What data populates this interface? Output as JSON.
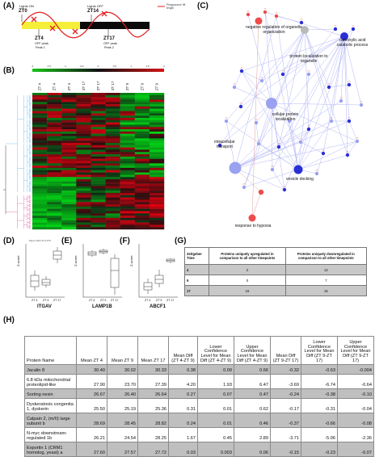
{
  "panel_labels": {
    "A": "(A)",
    "B": "(B)",
    "C": "(C)",
    "D": "(D)",
    "E": "(E)",
    "F": "(F)",
    "G": "(G)",
    "H": "(H)"
  },
  "panel_a": {
    "lights_on": "Lights ON",
    "zt0": "ZT0",
    "lights_off": "Lights OFF",
    "zt14": "ZT14",
    "zt4": "ZT4",
    "zt4_sub1": "OFF peak",
    "zt4_sub2": "Peak 1",
    "zt17": "ZT17",
    "zt17_sub1": "OFF peak",
    "zt17_sub2": "Peak 2",
    "legend": "Phagosome/ lift length",
    "colors": {
      "light": "#f5ef3a",
      "dark": "#0a0a0a",
      "wave": "#e02020"
    }
  },
  "panel_b": {
    "color_key_ticks": [
      "-2",
      "-1.5",
      "-1",
      "-0.5",
      "0",
      "0.5",
      "1",
      "1.5",
      "2"
    ],
    "column_labels": [
      "ZT 4",
      "ZT 4",
      "ZT 4",
      "ZT 17",
      "ZT 17",
      "ZT 17",
      "ZT 9",
      "ZT 9",
      "ZT 9"
    ],
    "colors": {
      "low": "#18c418",
      "mid": "#111111",
      "high": "#d41414",
      "dendro_top": "#5bb6e6",
      "dendro_bottom": "#e0559d"
    }
  },
  "panel_c": {
    "nodes": {
      "n1": "negative regulation of organelle organization",
      "n2": "protein localization to organelle",
      "n3": "carboxylic acid catabolic process",
      "n4": "cellular protein localization",
      "n5": "intracellular transport",
      "n6": "vesicle docking",
      "n7": "response to hypoxia"
    },
    "colors": {
      "red": "#f04b4b",
      "grey": "#b9b9b9",
      "blue": "#2a2fd6",
      "light_blue": "#9aa1f0",
      "edge": "#9fa4f2"
    }
  },
  "panel_d": {
    "legend": "Mean (SD)  ZT4  ZT9",
    "ylabel": "Z-score",
    "categories": [
      "ZT 4",
      "ZT 9",
      "ZT 17"
    ],
    "gene": "ITGAV"
  },
  "panel_e": {
    "ylabel": "Z-score",
    "categories": [
      "ZT 4",
      "ZT 9",
      "ZT 17"
    ],
    "gene": "LAMP1B"
  },
  "panel_f": {
    "ylabel": "Z-score",
    "categories": [
      "ZT 4",
      "ZT 9",
      "ZT 17"
    ],
    "gene": "ABCF1"
  },
  "panel_g": {
    "headers": [
      "Zeitgeber Time",
      "Proteins uniquely upregulated in comparison to all other timepoints",
      "Proteins uniquely downregulated in comparison to all other timepoints"
    ],
    "rows": [
      [
        "4",
        "2",
        "12"
      ],
      [
        "9",
        "0",
        "7"
      ],
      [
        "17",
        "16",
        "15"
      ]
    ]
  },
  "panel_h": {
    "headers": [
      "Protein Name",
      "Mean ZT 4",
      "Mean ZT 9",
      "Mean ZT 17",
      "Mean Diff (ZT 4-ZT 9)",
      "Lower Confidence Level for Mean Diff (ZT 4-ZT 9)",
      "Upper Confidence Level for Mean Diff (ZT 4-ZT 9)",
      "Mean Diff (ZT 9-ZT 17)",
      "Lower Confidence Level for Mean Diff (ZT 9-ZT 17)",
      "Upper Confidence Level for Mean Diff (ZT 9-ZT 17)"
    ],
    "rows": [
      [
        "Jacalin 8",
        "30.40",
        "30.02",
        "30.33",
        "0.38",
        "0.09",
        "0.66",
        "-0.32",
        "-0.63",
        "-0.004"
      ],
      [
        "6.8 kDa mitochondrial proteolipid-like",
        "27.90",
        "23.70",
        "27.39",
        "4.20",
        "1.93",
        "6.47",
        "-3.69",
        "-6.74",
        "-0.64"
      ],
      [
        "Sorting nexin",
        "26.67",
        "26.40",
        "26.64",
        "0.27",
        "0.07",
        "0.47",
        "-0.24",
        "-0.38",
        "-0.10"
      ],
      [
        "Dyskeratosis congenita 1, dyskerin",
        "25.50",
        "25.19",
        "25.36",
        "0.31",
        "0.01",
        "0.62",
        "-0.17",
        "-0.31",
        "-0.04"
      ],
      [
        "Calpain 2, (m/II) large subunit b",
        "28.69",
        "28.45",
        "28.82",
        "0.24",
        "0.01",
        "0.46",
        "-0.37",
        "-0.66",
        "-0.08"
      ],
      [
        "N-myc downstream-regulated 1b",
        "26.21",
        "24.54",
        "28.25",
        "1.67",
        "0.45",
        "2.89",
        "-3.71",
        "-5.06",
        "-2.36"
      ],
      [
        "Exportin 1 (CRM1 homolog, yeast) a",
        "27.60",
        "27.57",
        "27.72",
        "0.03",
        "0.003",
        "0.06",
        "-0.15",
        "-0.23",
        "-0.07"
      ]
    ]
  }
}
